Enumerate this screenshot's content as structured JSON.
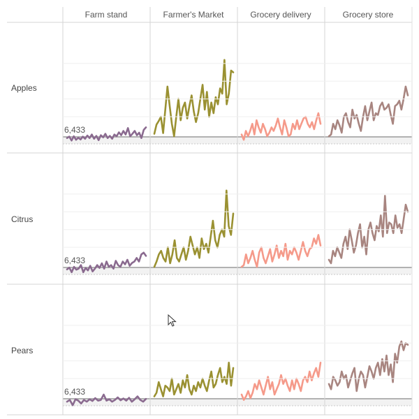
{
  "chart_data": {
    "type": "line",
    "layout": "small-multiples",
    "columns": [
      "Farm stand",
      "Farmer's Market",
      "Grocery delivery",
      "Grocery store"
    ],
    "rows": [
      "Apples",
      "Citrus",
      "Pears"
    ],
    "reference_line": {
      "value": 6433,
      "label": "6,433"
    },
    "y_domain": [
      5500,
      9500
    ],
    "colors": {
      "Farm stand": "#8a6a8f",
      "Farmer's Market": "#9a9132",
      "Grocery delivery": "#f59a8a",
      "Grocery store": "#a88580"
    },
    "series": [
      {
        "row": "Apples",
        "column": "Farm stand",
        "values": [
          6400,
          6440,
          6330,
          6450,
          6350,
          6410,
          6360,
          6440,
          6380,
          6470,
          6400,
          6500,
          6380,
          6460,
          6340,
          6480,
          6420,
          6520,
          6400,
          6460,
          6380,
          6500,
          6450,
          6560,
          6480,
          6600,
          6500,
          6680,
          6450,
          6520,
          6600,
          6480,
          6550,
          6400,
          6630,
          6700
        ]
      },
      {
        "row": "Apples",
        "column": "Farmer's Market",
        "values": [
          6520,
          6780,
          6880,
          7000,
          6540,
          7200,
          7850,
          7300,
          6800,
          6450,
          7000,
          7500,
          6900,
          7250,
          7400,
          6950,
          7300,
          7600,
          7150,
          6850,
          7100,
          7500,
          7900,
          7200,
          7700,
          7000,
          7400,
          7100,
          7550,
          7350,
          7800,
          7650,
          8600,
          7350,
          7650,
          8300,
          8250
        ]
      },
      {
        "row": "Apples",
        "column": "Grocery delivery",
        "values": [
          6500,
          6350,
          6600,
          6450,
          6600,
          6800,
          6500,
          6900,
          6700,
          6550,
          6800,
          6650,
          6450,
          6550,
          6700,
          6600,
          6750,
          6950,
          6700,
          6500,
          6900,
          6700,
          6450,
          6500,
          6800,
          6650,
          6900,
          6650,
          6800,
          6950,
          7000,
          6800,
          6700,
          6850,
          6650,
          6900,
          7100,
          6800
        ]
      },
      {
        "row": "Apples",
        "column": "Grocery store",
        "values": [
          6450,
          6500,
          6800,
          6650,
          6900,
          6750,
          6550,
          7000,
          7100,
          6850,
          6700,
          7200,
          6950,
          7050,
          6800,
          6600,
          7000,
          7300,
          6900,
          7150,
          7400,
          6900,
          7100,
          7050,
          7300,
          7400,
          7200,
          7250,
          7350,
          7050,
          6800,
          7300,
          7350,
          7450,
          7200,
          7500,
          7850,
          7600
        ]
      },
      {
        "row": "Citrus",
        "column": "Farm stand",
        "values": [
          6380,
          6430,
          6300,
          6450,
          6370,
          6400,
          6500,
          6300,
          6420,
          6350,
          6480,
          6320,
          6400,
          6500,
          6420,
          6550,
          6400,
          6600,
          6450,
          6500,
          6400,
          6620,
          6500,
          6450,
          6600,
          6520,
          6650,
          6480,
          6560,
          6600,
          6700,
          6600,
          6800,
          6850,
          6760
        ]
      },
      {
        "row": "Citrus",
        "column": "Farmer's Market",
        "values": [
          6450,
          6600,
          6800,
          6900,
          6700,
          6600,
          7000,
          6550,
          6800,
          7200,
          6700,
          6600,
          6800,
          7000,
          6650,
          6900,
          7300,
          7050,
          6800,
          7000,
          6700,
          7250,
          6950,
          7100,
          6850,
          7300,
          7750,
          7200,
          7000,
          7350,
          7500,
          7300,
          8600,
          7600,
          7350,
          7950
        ]
      },
      {
        "row": "Citrus",
        "column": "Grocery delivery",
        "values": [
          6450,
          6500,
          6800,
          6550,
          6700,
          6900,
          6650,
          6450,
          6850,
          7000,
          6700,
          6550,
          6750,
          6950,
          6600,
          6800,
          7050,
          6700,
          6900,
          6750,
          7100,
          6650,
          6900,
          6800,
          7000,
          6850,
          6650,
          6900,
          7150,
          6900,
          6750,
          6950,
          7000,
          7250,
          7100,
          7350,
          7050
        ]
      },
      {
        "row": "Citrus",
        "column": "Grocery store",
        "values": [
          6650,
          6550,
          6900,
          6750,
          7000,
          6850,
          6700,
          7100,
          7300,
          6950,
          7500,
          7200,
          6850,
          7050,
          7400,
          7650,
          7000,
          7300,
          6800,
          7500,
          7700,
          7400,
          7200,
          7600,
          7450,
          7900,
          7300,
          8450,
          7400,
          7700,
          7650,
          7400,
          7900,
          7550,
          7650,
          7400,
          7800,
          8200,
          8000
        ]
      },
      {
        "row": "Pears",
        "column": "Farm stand",
        "values": [
          6350,
          6400,
          6250,
          6420,
          6380,
          6300,
          6400,
          6350,
          6420,
          6370,
          6450,
          6380,
          6400,
          6550,
          6380,
          6420,
          6350,
          6400,
          6470,
          6390,
          6440,
          6380,
          6460,
          6350,
          6420,
          6500,
          6400,
          6350,
          6430
        ]
      },
      {
        "row": "Pears",
        "column": "Farmer's Market",
        "values": [
          6500,
          6600,
          6900,
          6700,
          6500,
          6800,
          6750,
          6650,
          7000,
          6550,
          6700,
          6850,
          6600,
          6950,
          6750,
          7100,
          6700,
          6550,
          6800,
          6650,
          6900,
          6750,
          7000,
          6800,
          6650,
          6950,
          7200,
          6750,
          6850,
          7100,
          7300,
          6900,
          7050,
          6850,
          7450,
          6800,
          7300
        ]
      },
      {
        "row": "Pears",
        "column": "Grocery delivery",
        "values": [
          6550,
          6400,
          6500,
          6650,
          6450,
          6600,
          6850,
          6700,
          6950,
          6750,
          6550,
          6800,
          7050,
          6700,
          6900,
          6550,
          6700,
          6850,
          7100,
          6850,
          7000,
          6800,
          6650,
          6950,
          6700,
          7000,
          6850,
          6650,
          6950,
          7050,
          6900,
          7200,
          6950,
          7150,
          7300,
          7050,
          7450
        ]
      },
      {
        "row": "Pears",
        "column": "Grocery store",
        "values": [
          6850,
          6700,
          7050,
          6950,
          6800,
          6900,
          7200,
          7000,
          7100,
          6750,
          6950,
          7150,
          7300,
          6650,
          7000,
          7200,
          7100,
          6750,
          7050,
          7350,
          7200,
          7000,
          7300,
          7450,
          7100,
          7550,
          7200,
          7650,
          7100,
          7400,
          6900,
          7700,
          7450,
          7900,
          8050,
          7800,
          8000,
          7950
        ]
      }
    ]
  }
}
